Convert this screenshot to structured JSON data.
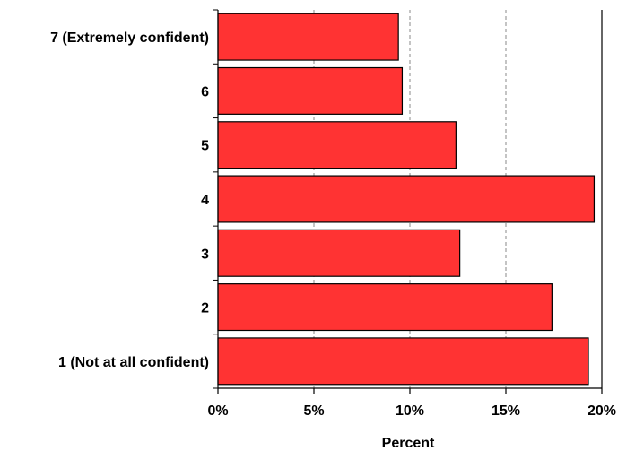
{
  "chart_data": {
    "type": "bar",
    "orientation": "horizontal",
    "categories": [
      "7 (Extremely confident)",
      "6",
      "5",
      "4",
      "3",
      "2",
      "1 (Not at all confident)"
    ],
    "values": [
      9.4,
      9.6,
      12.4,
      19.6,
      12.6,
      17.4,
      19.3
    ],
    "xlabel": "Percent",
    "ylabel": "",
    "xlim": [
      0,
      20
    ],
    "x_ticks": [
      0,
      5,
      10,
      15,
      20
    ],
    "x_tick_labels": [
      "0%",
      "5%",
      "10%",
      "15%",
      "20%"
    ],
    "grid": "vertical-dashed",
    "bar_color": "#ff3333",
    "bar_edge_color": "#000000"
  }
}
